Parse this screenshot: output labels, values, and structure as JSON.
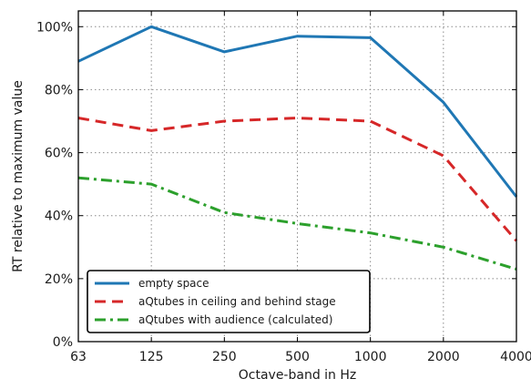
{
  "chart_data": {
    "type": "line",
    "title": "",
    "xlabel": "Octave-band in Hz",
    "ylabel": "RT relative to maximum value",
    "categories": [
      "63",
      "125",
      "250",
      "500",
      "1000",
      "2000",
      "4000"
    ],
    "y_ticks": [
      "0%",
      "20%",
      "40%",
      "60%",
      "80%",
      "100%"
    ],
    "ylim": [
      0,
      105
    ],
    "grid": true,
    "legend_position": "bottom-left",
    "series": [
      {
        "name": "empty space",
        "values": [
          89,
          100,
          92,
          97,
          96.5,
          76,
          46
        ],
        "color": "#1f77b4",
        "dash": "solid"
      },
      {
        "name": "aQtubes in ceiling and behind stage",
        "values": [
          71,
          67,
          70,
          71,
          70,
          59,
          32
        ],
        "color": "#d62728",
        "dash": "dashed"
      },
      {
        "name": "aQtubes with audience (calculated)",
        "values": [
          52,
          50,
          41,
          37.5,
          34.5,
          30,
          23
        ],
        "color": "#2ca02c",
        "dash": "dashdot"
      }
    ]
  }
}
